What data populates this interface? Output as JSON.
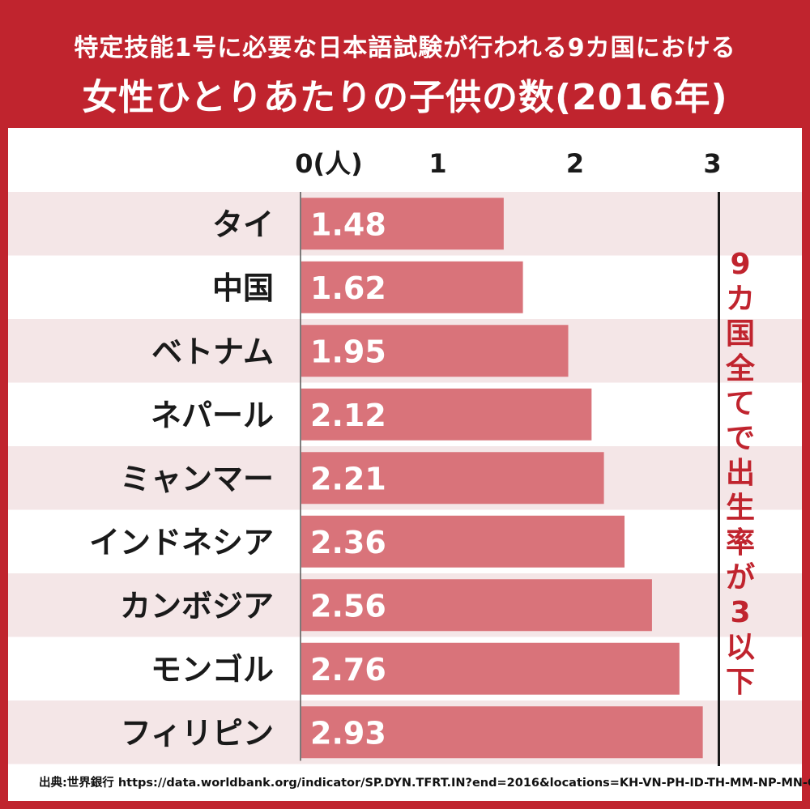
{
  "chart_data": {
    "type": "bar",
    "orientation": "horizontal",
    "subtitle": "特定技能1号に必要な日本語試験が行われる9カ国における",
    "title": "女性ひとりあたりの子供の数(2016年)",
    "categories": [
      "タイ",
      "中国",
      "ベトナム",
      "ネパール",
      "ミャンマー",
      "インドネシア",
      "カンボジア",
      "モンゴル",
      "フィリピン"
    ],
    "values": [
      1.48,
      1.62,
      1.95,
      2.12,
      2.21,
      2.36,
      2.56,
      2.76,
      2.93
    ],
    "value_labels": [
      "1.48",
      "1.62",
      "1.95",
      "2.12",
      "2.21",
      "2.36",
      "2.56",
      "2.76",
      "2.93"
    ],
    "xlim": [
      0,
      3
    ],
    "x_ticks": [
      "0(人)",
      "1",
      "2",
      "3"
    ],
    "reference_line": {
      "value": 3,
      "label": "9カ国全てで出生率が3以下"
    },
    "source": "出典:世界銀行 https://data.worldbank.org/indicator/SP.DYN.TFRT.IN?end=2016&locations=KH-VN-PH-ID-TH-MM-NP-MN-CN",
    "colors": {
      "frame": "#c0242e",
      "bar": "#d9737a",
      "stripe": "#f4e6e7",
      "annotation": "#c0242e"
    }
  }
}
